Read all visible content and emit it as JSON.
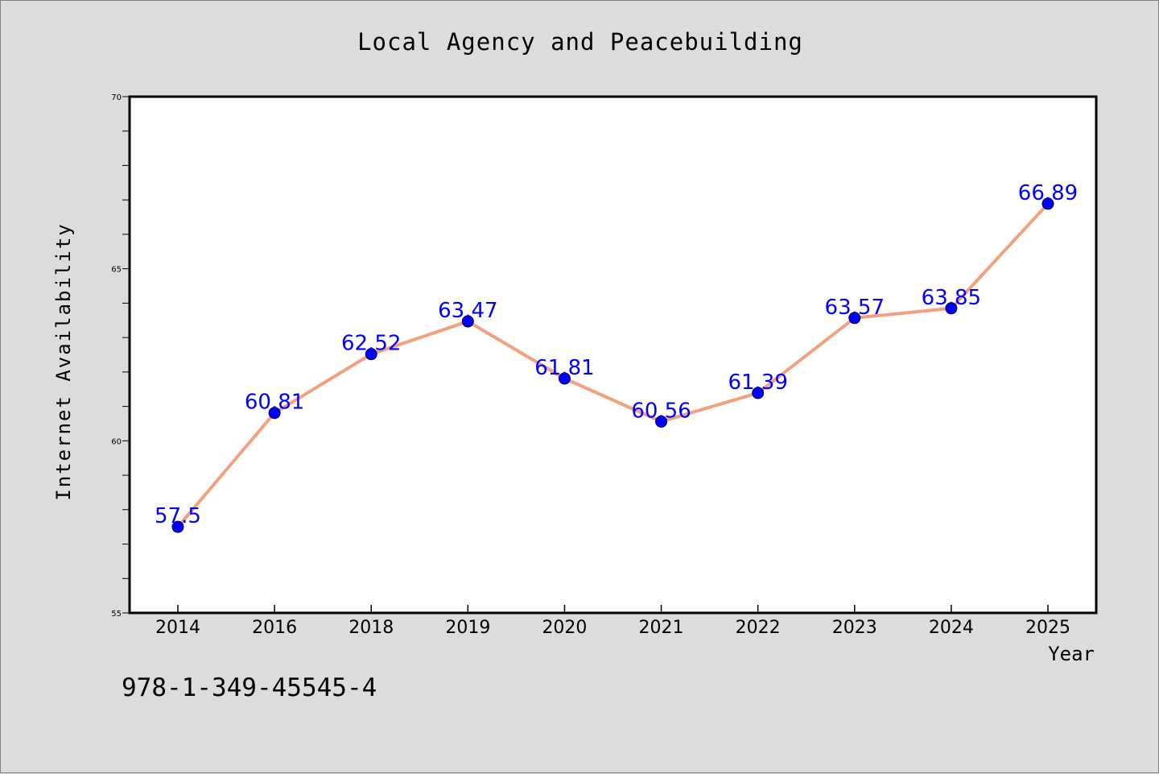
{
  "title": "Local Agency and Peacebuilding",
  "footer_code": "978-1-349-45545-4",
  "colors": {
    "background": "#dcdcdc",
    "plot_background": "#ffffff",
    "line": "#f4a07e",
    "marker": "#0000ff",
    "data_label": "#0000ff"
  },
  "chart_data": {
    "type": "line",
    "title": "Local Agency and Peacebuilding",
    "xlabel": "Year",
    "ylabel": "Internet Availability",
    "categories": [
      "2014",
      "2016",
      "2018",
      "2019",
      "2020",
      "2021",
      "2022",
      "2023",
      "2024",
      "2025"
    ],
    "series": [
      {
        "values": [
          57.5,
          60.81,
          62.52,
          63.47,
          61.81,
          60.56,
          61.39,
          63.57,
          63.85,
          66.89
        ],
        "labels": [
          "57.5",
          "60.81",
          "62.52",
          "63.47",
          "61.81",
          "60.56",
          "61.39",
          "63.57",
          "63.85",
          "66.89"
        ]
      }
    ],
    "ylim": [
      55,
      70
    ],
    "yticks": [
      "55",
      "60",
      "65",
      "70"
    ],
    "grid": false,
    "legend": "none"
  }
}
